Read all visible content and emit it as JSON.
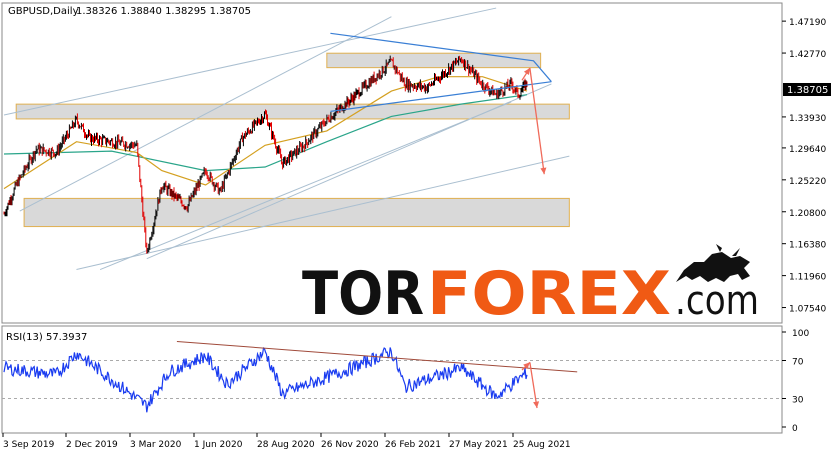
{
  "header": {
    "symbol": "GBPUSD,Daily",
    "ohlc": "1.38326 1.38840 1.38295 1.38705"
  },
  "price_axis": {
    "ticks": [
      "1.47190",
      "1.42770",
      "1.38705",
      "1.33930",
      "1.29640",
      "1.25220",
      "1.20800",
      "1.16380",
      "1.11960",
      "1.07540"
    ],
    "current": "1.38705"
  },
  "rsi": {
    "label": "RSI(13) 57.3937",
    "ticks": [
      "100",
      "70",
      "30",
      "0"
    ]
  },
  "date_axis": {
    "labels": [
      "3 Sep 2019",
      "2 Dec 2019",
      "3 Mar 2020",
      "1 Jun 2020",
      "28 Aug 2020",
      "26 Nov 2020",
      "26 Feb 2021",
      "27 May 2021",
      "25 Aug 2021"
    ]
  },
  "logo": {
    "part1": "TOR",
    "part2": "FOREX",
    "part3": ".com"
  },
  "colors": {
    "bull_candle": "#000000",
    "bear_candle": "#e00000",
    "ma_fast": "#d4a020",
    "ma_slow": "#2aa58a",
    "zone_fill": "#d9d9d9",
    "zone_border": "#e0b050",
    "trend_blue": "#3a7fd5",
    "channel": "#aabfd0",
    "arrow": "#f06a5a",
    "rsi_line": "#1a3cf0",
    "rsi_trend": "#a04a3a",
    "logo_dark": "#111111",
    "logo_orange": "#f05a14"
  },
  "chart_data": {
    "type": "candlestick",
    "instrument": "GBPUSD",
    "timeframe": "Daily",
    "ylim": [
      1.054,
      1.497
    ],
    "current_price": 1.38705,
    "rsi_period": 13,
    "rsi_current": 57.3937,
    "rsi_ylim": [
      0,
      100
    ],
    "rsi_levels": [
      70,
      30
    ],
    "price_path": [
      [
        "2019-09-03",
        1.205
      ],
      [
        "2019-09-20",
        1.245
      ],
      [
        "2019-10-18",
        1.295
      ],
      [
        "2019-11-15",
        1.29
      ],
      [
        "2019-12-13",
        1.335
      ],
      [
        "2019-12-31",
        1.31
      ],
      [
        "2020-01-31",
        1.305
      ],
      [
        "2020-03-06",
        1.3
      ],
      [
        "2020-03-20",
        1.15
      ],
      [
        "2020-04-10",
        1.245
      ],
      [
        "2020-05-15",
        1.215
      ],
      [
        "2020-06-10",
        1.265
      ],
      [
        "2020-06-30",
        1.235
      ],
      [
        "2020-07-31",
        1.31
      ],
      [
        "2020-09-01",
        1.343
      ],
      [
        "2020-09-25",
        1.275
      ],
      [
        "2020-10-25",
        1.3
      ],
      [
        "2020-11-26",
        1.335
      ],
      [
        "2020-12-31",
        1.365
      ],
      [
        "2021-02-24",
        1.415
      ],
      [
        "2021-03-15",
        1.385
      ],
      [
        "2021-04-15",
        1.38
      ],
      [
        "2021-06-01",
        1.42
      ],
      [
        "2021-06-30",
        1.385
      ],
      [
        "2021-07-20",
        1.37
      ],
      [
        "2021-08-10",
        1.385
      ],
      [
        "2021-08-20",
        1.37
      ],
      [
        "2021-09-01",
        1.387
      ]
    ],
    "rsi_path": [
      [
        "2019-09-03",
        62
      ],
      [
        "2019-11-15",
        55
      ],
      [
        "2019-12-13",
        78
      ],
      [
        "2020-01-31",
        50
      ],
      [
        "2020-03-20",
        22
      ],
      [
        "2020-04-20",
        58
      ],
      [
        "2020-06-10",
        75
      ],
      [
        "2020-07-10",
        45
      ],
      [
        "2020-09-01",
        80
      ],
      [
        "2020-09-25",
        35
      ],
      [
        "2020-12-31",
        62
      ],
      [
        "2021-02-24",
        80
      ],
      [
        "2021-03-15",
        42
      ],
      [
        "2021-06-01",
        62
      ],
      [
        "2021-07-20",
        32
      ],
      [
        "2021-09-01",
        57.39
      ]
    ],
    "ma_fast_path": [
      [
        "2019-09-03",
        1.24
      ],
      [
        "2019-12-13",
        1.305
      ],
      [
        "2020-03-06",
        1.29
      ],
      [
        "2020-04-10",
        1.265
      ],
      [
        "2020-06-10",
        1.245
      ],
      [
        "2020-09-01",
        1.3
      ],
      [
        "2020-11-26",
        1.32
      ],
      [
        "2021-02-24",
        1.375
      ],
      [
        "2021-05-01",
        1.395
      ],
      [
        "2021-07-01",
        1.395
      ],
      [
        "2021-09-01",
        1.375
      ]
    ],
    "ma_slow_path": [
      [
        "2019-09-03",
        1.288
      ],
      [
        "2020-01-31",
        1.292
      ],
      [
        "2020-06-10",
        1.265
      ],
      [
        "2020-09-01",
        1.27
      ],
      [
        "2020-11-26",
        1.305
      ],
      [
        "2021-02-24",
        1.34
      ],
      [
        "2021-06-01",
        1.357
      ],
      [
        "2021-09-01",
        1.37
      ]
    ],
    "zones": [
      [
        "2020-11-26",
        "2021-09-20",
        1.4075,
        1.4275
      ],
      [
        "2019-09-20",
        "2021-10-30",
        1.3365,
        1.357
      ],
      [
        "2019-10-01",
        "2021-10-30",
        1.1875,
        1.2265
      ]
    ],
    "trend_lines": [
      {
        "kind": "resistance",
        "points": [
          [
            "2020-12-01",
            1.455
          ],
          [
            "2021-09-10",
            1.417
          ],
          [
            "2021-10-05",
            1.388
          ]
        ]
      },
      {
        "kind": "support",
        "points": [
          [
            "2020-12-01",
            1.347
          ],
          [
            "2021-10-05",
            1.388
          ]
        ]
      }
    ],
    "channel_lines": [
      {
        "points": [
          [
            "2019-09-03",
            1.342
          ],
          [
            "2021-07-20",
            1.49
          ]
        ]
      },
      {
        "points": [
          [
            "2019-09-25",
            1.209
          ],
          [
            "2021-02-24",
            1.478
          ]
        ]
      },
      {
        "points": [
          [
            "2020-01-15",
            1.128
          ],
          [
            "2021-08-10",
            1.36
          ]
        ]
      },
      {
        "points": [
          [
            "2020-03-20",
            1.143
          ],
          [
            "2021-10-05",
            1.385
          ]
        ]
      },
      {
        "points": [
          [
            "2019-12-13",
            1.128
          ],
          [
            "2021-10-30",
            1.285
          ]
        ]
      }
    ],
    "forecast_arrows": [
      {
        "points": [
          [
            "2021-08-25",
            1.39
          ],
          [
            "2021-09-05",
            1.407
          ]
        ]
      },
      {
        "points": [
          [
            "2021-09-05",
            1.407
          ],
          [
            "2021-09-25",
            1.26
          ]
        ]
      }
    ],
    "rsi_trend_lines": [
      {
        "points": [
          [
            "2020-05-01",
            90
          ],
          [
            "2021-11-10",
            58
          ]
        ]
      }
    ],
    "rsi_forecast_arrows": [
      {
        "points": [
          [
            "2021-08-25",
            60
          ],
          [
            "2021-09-05",
            68
          ]
        ]
      },
      {
        "points": [
          [
            "2021-09-05",
            68
          ],
          [
            "2021-09-15",
            20
          ]
        ]
      }
    ]
  }
}
